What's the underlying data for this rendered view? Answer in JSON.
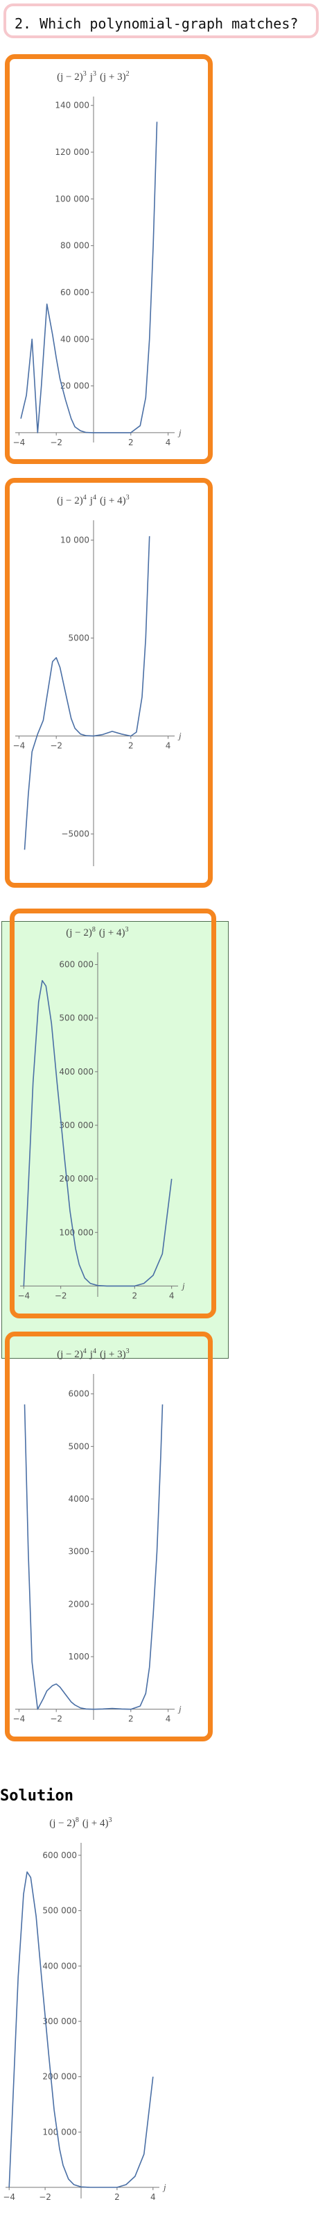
{
  "question": {
    "text": "2. Which polynomial-graph matches?"
  },
  "colors": {
    "card_border": "#f5851f",
    "selected_bg": "#ddfbdb",
    "curve": "#4a6fa5",
    "question_border": "#f6c8cd"
  },
  "options": [
    {
      "title": [
        "(j − 2)",
        "3",
        " j",
        "3",
        " (j + 3)",
        "2"
      ],
      "selected": false,
      "chart_data": {
        "type": "line",
        "title": "(j − 2)^3 j^3 (j + 3)^2",
        "xlabel": "j",
        "ylabel": "",
        "xlim": [
          -4.2,
          4.2
        ],
        "ylim": [
          -3000,
          142000
        ],
        "x": [
          -3.9,
          -3.6,
          -3.3,
          -3,
          -2.8,
          -2.5,
          -2.2,
          -2,
          -1.8,
          -1.5,
          -1.2,
          -1,
          -0.7,
          -0.4,
          0,
          0.5,
          1,
          1.5,
          2,
          2.5,
          2.8,
          3,
          3.2,
          3.4
        ],
        "y": [
          6000,
          16000,
          40000,
          0,
          20000,
          55000,
          42000,
          32000,
          23000,
          14000,
          6000,
          2500,
          800,
          100,
          0,
          0,
          0,
          0,
          0,
          3000,
          15000,
          40000,
          80000,
          133000
        ],
        "xticks": [
          -4,
          -2,
          2,
          4
        ],
        "xtick_labels": [
          "−4",
          "−2",
          "2",
          "4"
        ],
        "yticks": [
          20000,
          40000,
          60000,
          80000,
          100000,
          120000,
          140000
        ],
        "ytick_labels": [
          "20 000",
          "40 000",
          "60 000",
          "80 000",
          "100 000",
          "120 000",
          "140 000"
        ]
      }
    },
    {
      "title": [
        "(j − 2)",
        "4",
        " j",
        "4",
        " (j + 4)",
        "3"
      ],
      "selected": false,
      "chart_data": {
        "type": "line",
        "title": "(j − 2)^4 j^4 (j + 4)^3",
        "xlabel": "j",
        "ylabel": "",
        "xlim": [
          -4.2,
          4.2
        ],
        "ylim": [
          -6500,
          10800
        ],
        "x": [
          -3.7,
          -3.5,
          -3.3,
          -3,
          -2.7,
          -2.5,
          -2.2,
          -2,
          -1.8,
          -1.5,
          -1.2,
          -1,
          -0.7,
          -0.4,
          0,
          0.5,
          1,
          1.5,
          2,
          2.3,
          2.6,
          2.8,
          3
        ],
        "y": [
          -5800,
          -3000,
          -800,
          100,
          800,
          2000,
          3800,
          4000,
          3500,
          2200,
          900,
          400,
          100,
          20,
          0,
          80,
          240,
          100,
          0,
          200,
          2000,
          5000,
          10200
        ],
        "xticks": [
          -4,
          -2,
          2,
          4
        ],
        "xtick_labels": [
          "−4",
          "−2",
          "2",
          "4"
        ],
        "yticks": [
          -5000,
          5000,
          10000
        ],
        "ytick_labels": [
          "−5000",
          "5000",
          "10 000"
        ]
      }
    },
    {
      "title": [
        "(j − 2)",
        "8",
        " (j + 4)",
        "3",
        "",
        ""
      ],
      "selected": true,
      "chart_data": {
        "type": "line",
        "title": "(j − 2)^8 (j + 4)^3",
        "xlabel": "j",
        "ylabel": "",
        "xlim": [
          -4.2,
          4.2
        ],
        "ylim": [
          -15000,
          615000
        ],
        "x": [
          -4,
          -3.8,
          -3.5,
          -3.2,
          -3,
          -2.8,
          -2.5,
          -2.2,
          -2,
          -1.8,
          -1.5,
          -1.2,
          -1,
          -0.7,
          -0.4,
          0,
          0.5,
          1,
          1.5,
          2,
          2.5,
          3,
          3.5,
          4
        ],
        "y": [
          0,
          150000,
          380000,
          530000,
          570000,
          560000,
          490000,
          380000,
          310000,
          240000,
          140000,
          70000,
          40000,
          15000,
          5000,
          1000,
          0,
          0,
          0,
          0,
          5000,
          20000,
          60000,
          200000
        ],
        "xticks": [
          -4,
          -2,
          2,
          4
        ],
        "xtick_labels": [
          "−4",
          "−2",
          "2",
          "4"
        ],
        "yticks": [
          100000,
          200000,
          300000,
          400000,
          500000,
          600000
        ],
        "ytick_labels": [
          "100 000",
          "200 000",
          "300 000",
          "400 000",
          "500 000",
          "600 000"
        ]
      }
    },
    {
      "title": [
        "(j − 2)",
        "4",
        " j",
        "4",
        " (j + 3)",
        "3"
      ],
      "selected": false,
      "chart_data": {
        "type": "line",
        "title": "(j − 2)^4 j^4 (j + 3)^3",
        "xlabel": "j",
        "ylabel": "",
        "xlim": [
          -4.2,
          4.2
        ],
        "ylim": [
          -150,
          6300
        ],
        "x": [
          -3.7,
          -3.5,
          -3.3,
          -3,
          -2.7,
          -2.5,
          -2.2,
          -2,
          -1.8,
          -1.5,
          -1.2,
          -1,
          -0.7,
          -0.4,
          0,
          0.5,
          1,
          1.5,
          2,
          2.5,
          2.8,
          3,
          3.2,
          3.4,
          3.6,
          3.7
        ],
        "y": [
          5800,
          3000,
          900,
          0,
          200,
          350,
          450,
          480,
          420,
          280,
          140,
          80,
          25,
          5,
          0,
          5,
          15,
          5,
          0,
          60,
          300,
          800,
          1800,
          3000,
          4800,
          5800
        ],
        "xticks": [
          -4,
          -2,
          2,
          4
        ],
        "xtick_labels": [
          "−4",
          "−2",
          "2",
          "4"
        ],
        "yticks": [
          1000,
          2000,
          3000,
          4000,
          5000,
          6000
        ],
        "ytick_labels": [
          "1000",
          "2000",
          "3000",
          "4000",
          "5000",
          "6000"
        ]
      }
    }
  ],
  "solution": {
    "heading": "Solution",
    "title": [
      "(j − 2)",
      "8",
      " (j + 4)",
      "3",
      "",
      ""
    ],
    "chart_data": {
      "type": "line",
      "title": "(j − 2)^8 (j + 4)^3",
      "xlabel": "j",
      "ylabel": "",
      "xlim": [
        -4.2,
        4.2
      ],
      "ylim": [
        -15000,
        615000
      ],
      "x": [
        -4,
        -3.8,
        -3.5,
        -3.2,
        -3,
        -2.8,
        -2.5,
        -2.2,
        -2,
        -1.8,
        -1.5,
        -1.2,
        -1,
        -0.7,
        -0.4,
        0,
        0.5,
        1,
        1.5,
        2,
        2.5,
        3,
        3.5,
        4
      ],
      "y": [
        0,
        150000,
        380000,
        530000,
        570000,
        560000,
        490000,
        380000,
        310000,
        240000,
        140000,
        70000,
        40000,
        15000,
        5000,
        1000,
        0,
        0,
        0,
        0,
        5000,
        20000,
        60000,
        200000
      ],
      "xticks": [
        -4,
        -2,
        2,
        4
      ],
      "xtick_labels": [
        "−4",
        "−2",
        "2",
        "4"
      ],
      "yticks": [
        100000,
        200000,
        300000,
        400000,
        500000,
        600000
      ],
      "ytick_labels": [
        "100 000",
        "200 000",
        "300 000",
        "400 000",
        "500 000",
        "600 000"
      ]
    }
  }
}
